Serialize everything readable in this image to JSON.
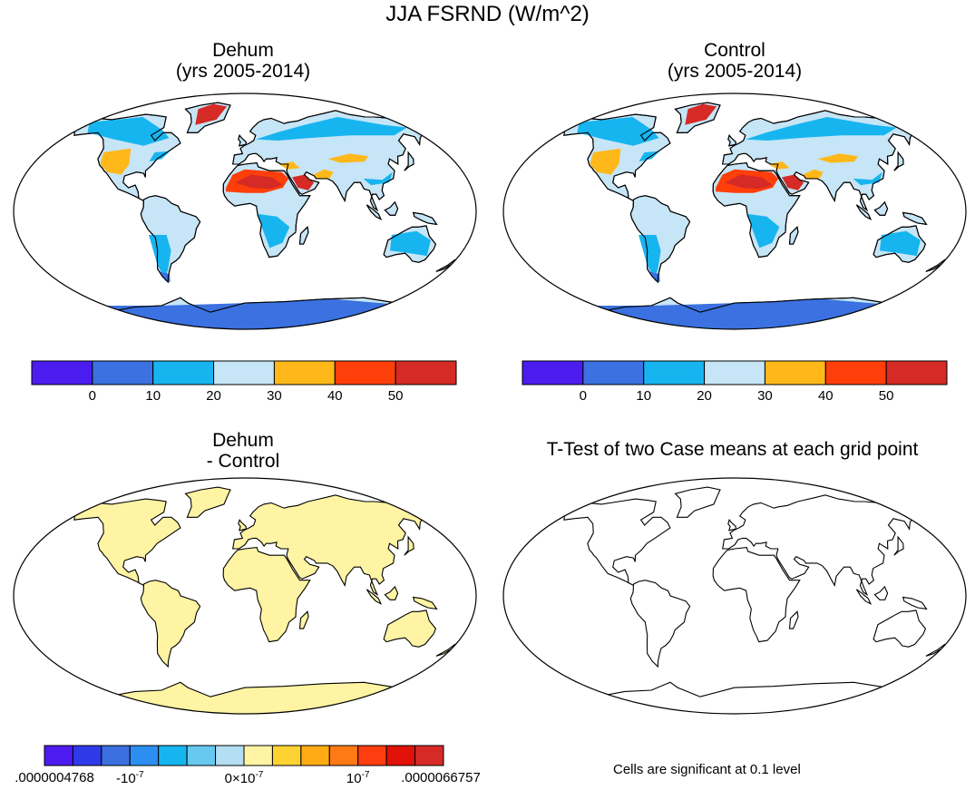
{
  "main_title": "JJA FSRND (W/m^2)",
  "panels": {
    "dehum": {
      "title": "Dehum",
      "subtitle": "(yrs 2005-2014)"
    },
    "control": {
      "title": "Control",
      "subtitle": "(yrs 2005-2014)"
    },
    "diff": {
      "title": "Dehum",
      "subtitle": "- Control"
    },
    "ttest": {
      "title": "T-Test of two Case means at each grid point",
      "note": "Cells are significant at 0.1 level"
    }
  },
  "colorbar_main": {
    "colors": [
      "#4b1cf0",
      "#3b71e0",
      "#17b5f0",
      "#c6e5f6",
      "#feb81a",
      "#fe3f0a",
      "#d52a25"
    ],
    "labels": [
      "0",
      "10",
      "20",
      "30",
      "40",
      "50"
    ]
  },
  "colorbar_diff": {
    "colors": [
      "#4d1bf0",
      "#2e3ae8",
      "#3b6fe0",
      "#2c8ef0",
      "#17b5f0",
      "#67c8f0",
      "#b3def3",
      "#fff4a3",
      "#ffd234",
      "#ffac14",
      "#ff7a14",
      "#ff3d0f",
      "#e0120a",
      "#d62a26"
    ],
    "labels": [
      ".0000004768",
      "-10",
      "0×10",
      "10",
      ".0000066757"
    ],
    "exponent": "-7"
  }
}
